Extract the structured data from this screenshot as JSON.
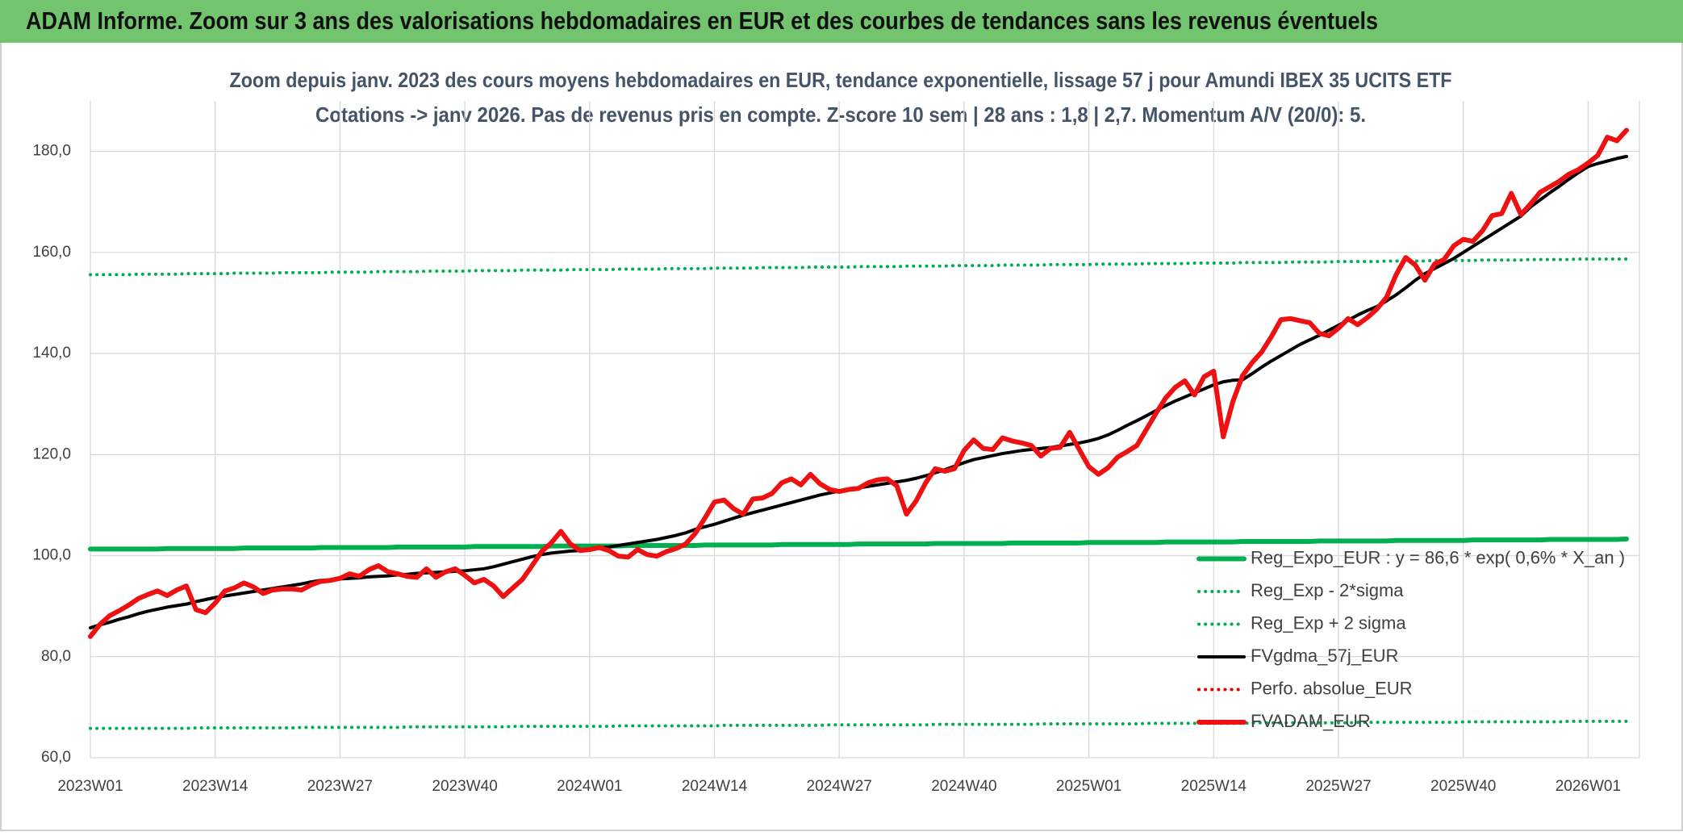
{
  "header": "ADAM Informe. Zoom sur 3 ans des valorisations hebdomadaires en EUR et des courbes de tendances sans les revenus éventuels",
  "chart_data": {
    "type": "line",
    "title": "Zoom depuis janv. 2023 des cours moyens hebdomadaires en EUR, tendance exponentielle, lissage 57 j pour Amundi IBEX 35 UCITS ETF",
    "subtitle": "Cotations -> janv 2026. Pas de revenus pris en compte. Z-score 10 sem | 28 ans : 1,8 | 2,7. Momentum A/V (20/0): 5.",
    "categories": [
      "2023W01",
      null,
      null,
      null,
      null,
      null,
      null,
      null,
      null,
      null,
      null,
      null,
      null,
      "2023W14",
      null,
      null,
      null,
      null,
      null,
      null,
      null,
      null,
      null,
      null,
      null,
      null,
      "2023W27",
      null,
      null,
      null,
      null,
      null,
      null,
      null,
      null,
      null,
      null,
      null,
      null,
      "2023W40",
      null,
      null,
      null,
      null,
      null,
      null,
      null,
      null,
      null,
      null,
      null,
      null,
      "2024W01",
      null,
      null,
      null,
      null,
      null,
      null,
      null,
      null,
      null,
      null,
      null,
      null,
      "2024W14",
      null,
      null,
      null,
      null,
      null,
      null,
      null,
      null,
      null,
      null,
      null,
      null,
      "2024W27",
      null,
      null,
      null,
      null,
      null,
      null,
      null,
      null,
      null,
      null,
      null,
      null,
      "2024W40",
      null,
      null,
      null,
      null,
      null,
      null,
      null,
      null,
      null,
      null,
      null,
      null,
      "2025W01",
      null,
      null,
      null,
      null,
      null,
      null,
      null,
      null,
      null,
      null,
      null,
      null,
      "2025W14",
      null,
      null,
      null,
      null,
      null,
      null,
      null,
      null,
      null,
      null,
      null,
      null,
      "2025W27",
      null,
      null,
      null,
      null,
      null,
      null,
      null,
      null,
      null,
      null,
      null,
      null,
      "2025W40",
      null,
      null,
      null,
      null,
      null,
      null,
      null,
      null,
      null,
      null,
      null,
      null,
      "2026W01",
      null,
      null,
      null,
      null
    ],
    "ylim": [
      60,
      190
    ],
    "yticks": [
      {
        "value": 60,
        "label": "60,0"
      },
      {
        "value": 80,
        "label": "80,0"
      },
      {
        "value": 100,
        "label": "100,0"
      },
      {
        "value": 120,
        "label": "120,0"
      },
      {
        "value": 140,
        "label": "140,0"
      },
      {
        "value": 160,
        "label": "160,0"
      },
      {
        "value": 180,
        "label": "180,0"
      }
    ],
    "grid": true,
    "legend": "lower right",
    "series": [
      {
        "name": "Reg_Expo_EUR : y = 86,6 * exp( 0,6% *  X_an )",
        "color": "#00b050",
        "line_style": "thick",
        "values": [
          101.3,
          101.3,
          101.3,
          101.3,
          101.3,
          101.3,
          101.3,
          101.3,
          101.4,
          101.4,
          101.4,
          101.4,
          101.4,
          101.4,
          101.4,
          101.4,
          101.5,
          101.5,
          101.5,
          101.5,
          101.5,
          101.5,
          101.5,
          101.5,
          101.6,
          101.6,
          101.6,
          101.6,
          101.6,
          101.6,
          101.6,
          101.6,
          101.7,
          101.7,
          101.7,
          101.7,
          101.7,
          101.7,
          101.7,
          101.7,
          101.8,
          101.8,
          101.8,
          101.8,
          101.8,
          101.8,
          101.8,
          101.8,
          101.9,
          101.9,
          101.9,
          101.9,
          101.9,
          101.9,
          101.9,
          101.9,
          102.0,
          102.0,
          102.0,
          102.0,
          102.0,
          102.0,
          102.0,
          102.0,
          102.1,
          102.1,
          102.1,
          102.1,
          102.1,
          102.1,
          102.1,
          102.1,
          102.2,
          102.2,
          102.2,
          102.2,
          102.2,
          102.2,
          102.2,
          102.2,
          102.3,
          102.3,
          102.3,
          102.3,
          102.3,
          102.3,
          102.3,
          102.3,
          102.4,
          102.4,
          102.4,
          102.4,
          102.4,
          102.4,
          102.4,
          102.4,
          102.5,
          102.5,
          102.5,
          102.5,
          102.5,
          102.5,
          102.5,
          102.5,
          102.6,
          102.6,
          102.6,
          102.6,
          102.6,
          102.6,
          102.6,
          102.6,
          102.7,
          102.7,
          102.7,
          102.7,
          102.7,
          102.7,
          102.7,
          102.7,
          102.8,
          102.8,
          102.8,
          102.8,
          102.8,
          102.8,
          102.8,
          102.8,
          102.9,
          102.9,
          102.9,
          102.9,
          102.9,
          102.9,
          102.9,
          102.9,
          103.0,
          103.0,
          103.0,
          103.0,
          103.0,
          103.0,
          103.0,
          103.0,
          103.1,
          103.1,
          103.1,
          103.1,
          103.1,
          103.1,
          103.1,
          103.1,
          103.2,
          103.2,
          103.2,
          103.2,
          103.2,
          103.2,
          103.2,
          103.2,
          103.3
        ]
      },
      {
        "name": "Reg_Exp - 2*sigma",
        "color": "#00b050",
        "line_style": "dotted",
        "values": [
          65.8,
          65.8,
          65.8,
          65.8,
          65.8,
          65.8,
          65.8,
          65.8,
          65.8,
          65.8,
          65.8,
          65.9,
          65.9,
          65.9,
          65.9,
          65.9,
          65.9,
          65.9,
          65.9,
          65.9,
          65.9,
          65.9,
          66.0,
          66.0,
          66.0,
          66.0,
          66.0,
          66.0,
          66.0,
          66.0,
          66.0,
          66.0,
          66.0,
          66.1,
          66.1,
          66.1,
          66.1,
          66.1,
          66.1,
          66.1,
          66.1,
          66.1,
          66.1,
          66.1,
          66.2,
          66.2,
          66.2,
          66.2,
          66.2,
          66.2,
          66.2,
          66.2,
          66.2,
          66.2,
          66.2,
          66.3,
          66.3,
          66.3,
          66.3,
          66.3,
          66.3,
          66.3,
          66.3,
          66.3,
          66.3,
          66.3,
          66.4,
          66.4,
          66.4,
          66.4,
          66.4,
          66.4,
          66.4,
          66.4,
          66.4,
          66.4,
          66.4,
          66.5,
          66.5,
          66.5,
          66.5,
          66.5,
          66.5,
          66.5,
          66.5,
          66.5,
          66.5,
          66.5,
          66.6,
          66.6,
          66.6,
          66.6,
          66.6,
          66.6,
          66.6,
          66.6,
          66.6,
          66.6,
          66.6,
          66.7,
          66.7,
          66.7,
          66.7,
          66.7,
          66.7,
          66.7,
          66.7,
          66.7,
          66.7,
          66.7,
          66.8,
          66.8,
          66.8,
          66.8,
          66.8,
          66.8,
          66.8,
          66.8,
          66.8,
          66.8,
          66.8,
          66.9,
          66.9,
          66.9,
          66.9,
          66.9,
          66.9,
          66.9,
          66.9,
          66.9,
          66.9,
          66.9,
          67.0,
          67.0,
          67.0,
          67.0,
          67.0,
          67.0,
          67.0,
          67.0,
          67.0,
          67.0,
          67.0,
          67.1,
          67.1,
          67.1,
          67.1,
          67.1,
          67.1,
          67.1,
          67.1,
          67.1,
          67.1,
          67.1,
          67.2,
          67.2,
          67.2,
          67.2,
          67.2,
          67.2,
          67.2
        ]
      },
      {
        "name": "Reg_Exp + 2 sigma",
        "color": "#00b050",
        "line_style": "dotted",
        "values": [
          155.6,
          155.6,
          155.6,
          155.6,
          155.6,
          155.7,
          155.7,
          155.7,
          155.7,
          155.7,
          155.8,
          155.8,
          155.8,
          155.8,
          155.8,
          155.9,
          155.9,
          155.9,
          155.9,
          155.9,
          156.0,
          156.0,
          156.0,
          156.0,
          156.0,
          156.1,
          156.1,
          156.1,
          156.1,
          156.1,
          156.2,
          156.2,
          156.2,
          156.2,
          156.2,
          156.3,
          156.3,
          156.3,
          156.3,
          156.3,
          156.4,
          156.4,
          156.4,
          156.4,
          156.4,
          156.5,
          156.5,
          156.5,
          156.5,
          156.5,
          156.6,
          156.6,
          156.6,
          156.6,
          156.6,
          156.7,
          156.7,
          156.7,
          156.7,
          156.7,
          156.8,
          156.8,
          156.8,
          156.8,
          156.8,
          156.9,
          156.9,
          156.9,
          156.9,
          156.9,
          157.0,
          157.0,
          157.0,
          157.0,
          157.0,
          157.1,
          157.1,
          157.1,
          157.1,
          157.1,
          157.2,
          157.2,
          157.2,
          157.2,
          157.2,
          157.3,
          157.3,
          157.3,
          157.3,
          157.3,
          157.4,
          157.4,
          157.4,
          157.4,
          157.4,
          157.5,
          157.5,
          157.5,
          157.5,
          157.5,
          157.6,
          157.6,
          157.6,
          157.6,
          157.6,
          157.7,
          157.7,
          157.7,
          157.7,
          157.7,
          157.8,
          157.8,
          157.8,
          157.8,
          157.8,
          157.9,
          157.9,
          157.9,
          157.9,
          157.9,
          158.0,
          158.0,
          158.0,
          158.0,
          158.0,
          158.1,
          158.1,
          158.1,
          158.1,
          158.1,
          158.2,
          158.2,
          158.2,
          158.2,
          158.2,
          158.3,
          158.3,
          158.3,
          158.3,
          158.3,
          158.4,
          158.4,
          158.4,
          158.4,
          158.4,
          158.5,
          158.5,
          158.5,
          158.5,
          158.5,
          158.6,
          158.6,
          158.6,
          158.6,
          158.6,
          158.7,
          158.7,
          158.7,
          158.7,
          158.7,
          158.7
        ]
      },
      {
        "name": "FVgdma_57j_EUR",
        "color": "#000000",
        "line_style": "solid",
        "values": [
          85.7,
          86.3,
          86.8,
          87.4,
          87.9,
          88.5,
          89.0,
          89.4,
          89.8,
          90.1,
          90.4,
          90.9,
          91.3,
          91.7,
          92.0,
          92.3,
          92.6,
          92.9,
          93.2,
          93.5,
          93.8,
          94.1,
          94.4,
          94.8,
          95.1,
          95.2,
          95.4,
          95.5,
          95.6,
          95.8,
          95.9,
          96.0,
          96.2,
          96.3,
          96.5,
          96.6,
          96.7,
          96.8,
          96.9,
          97.0,
          97.2,
          97.4,
          97.8,
          98.3,
          98.8,
          99.3,
          99.8,
          100.2,
          100.5,
          100.7,
          100.9,
          101.0,
          101.2,
          101.5,
          101.7,
          102.0,
          102.3,
          102.6,
          102.9,
          103.2,
          103.6,
          104.0,
          104.5,
          105.2,
          105.7,
          106.2,
          106.8,
          107.4,
          108.0,
          108.5,
          109.0,
          109.5,
          110.0,
          110.5,
          111.0,
          111.5,
          112.0,
          112.4,
          112.8,
          113.1,
          113.4,
          113.7,
          114.0,
          114.3,
          114.6,
          114.9,
          115.3,
          115.8,
          116.4,
          117.0,
          117.7,
          118.4,
          119.0,
          119.4,
          119.8,
          120.2,
          120.5,
          120.8,
          121.0,
          121.2,
          121.4,
          121.7,
          122.0,
          122.3,
          122.7,
          123.2,
          123.9,
          124.8,
          125.8,
          126.7,
          127.7,
          128.7,
          129.7,
          130.6,
          131.4,
          132.2,
          133.0,
          133.8,
          134.4,
          134.7,
          134.8,
          136.0,
          137.3,
          138.5,
          139.6,
          140.7,
          141.8,
          142.7,
          143.6,
          144.6,
          145.6,
          146.6,
          147.6,
          148.5,
          149.3,
          150.4,
          151.6,
          153.0,
          154.5,
          155.8,
          156.8,
          157.8,
          158.8,
          160.0,
          161.2,
          162.4,
          163.6,
          164.8,
          166.0,
          167.2,
          169.0,
          170.4,
          171.8,
          173.1,
          174.5,
          175.8,
          177.0,
          177.6,
          178.1,
          178.6,
          179.0
        ]
      },
      {
        "name": "Perfo. absolue_EUR",
        "color": "#e00000",
        "line_style": "dotted"
      },
      {
        "name": "FVADAM_EUR",
        "color": "#ee1111",
        "line_style": "thick",
        "values": [
          84.0,
          86.4,
          88.1,
          89.1,
          90.2,
          91.5,
          92.3,
          93.0,
          92.1,
          93.2,
          94.0,
          89.3,
          88.7,
          90.6,
          93.0,
          93.6,
          94.6,
          93.8,
          92.5,
          93.2,
          93.4,
          93.4,
          93.2,
          94.2,
          94.9,
          95.1,
          95.5,
          96.4,
          95.9,
          97.2,
          98.0,
          96.8,
          96.4,
          95.9,
          95.7,
          97.4,
          95.7,
          96.8,
          97.4,
          96.1,
          94.6,
          95.3,
          94.0,
          91.9,
          93.6,
          95.3,
          98.0,
          100.8,
          102.5,
          104.8,
          102.3,
          101.0,
          101.2,
          101.6,
          101.0,
          99.9,
          99.7,
          101.2,
          100.2,
          99.9,
          100.8,
          101.4,
          102.3,
          104.4,
          107.4,
          110.6,
          111.0,
          109.3,
          108.2,
          111.2,
          111.4,
          112.3,
          114.4,
          115.2,
          114.0,
          116.1,
          114.2,
          113.1,
          112.7,
          113.1,
          113.3,
          114.4,
          115.0,
          115.2,
          113.8,
          108.2,
          110.8,
          114.4,
          117.2,
          116.7,
          117.2,
          120.8,
          122.9,
          121.2,
          121.0,
          123.3,
          122.7,
          122.3,
          121.8,
          119.7,
          121.2,
          121.4,
          124.4,
          121.0,
          117.6,
          116.1,
          117.4,
          119.5,
          120.6,
          121.8,
          125.0,
          128.2,
          131.2,
          133.3,
          134.6,
          131.8,
          135.4,
          136.5,
          123.5,
          130.5,
          135.6,
          138.2,
          140.3,
          143.3,
          146.7,
          146.9,
          146.5,
          146.1,
          144.0,
          143.5,
          145.0,
          146.9,
          145.7,
          147.1,
          148.8,
          151.1,
          155.6,
          159.0,
          157.5,
          154.5,
          157.7,
          158.6,
          161.3,
          162.6,
          162.2,
          164.3,
          167.3,
          167.7,
          171.7,
          167.5,
          169.6,
          171.9,
          173.0,
          174.1,
          175.5,
          176.4,
          177.7,
          179.2,
          182.8,
          182.1,
          184.2
        ]
      }
    ]
  }
}
